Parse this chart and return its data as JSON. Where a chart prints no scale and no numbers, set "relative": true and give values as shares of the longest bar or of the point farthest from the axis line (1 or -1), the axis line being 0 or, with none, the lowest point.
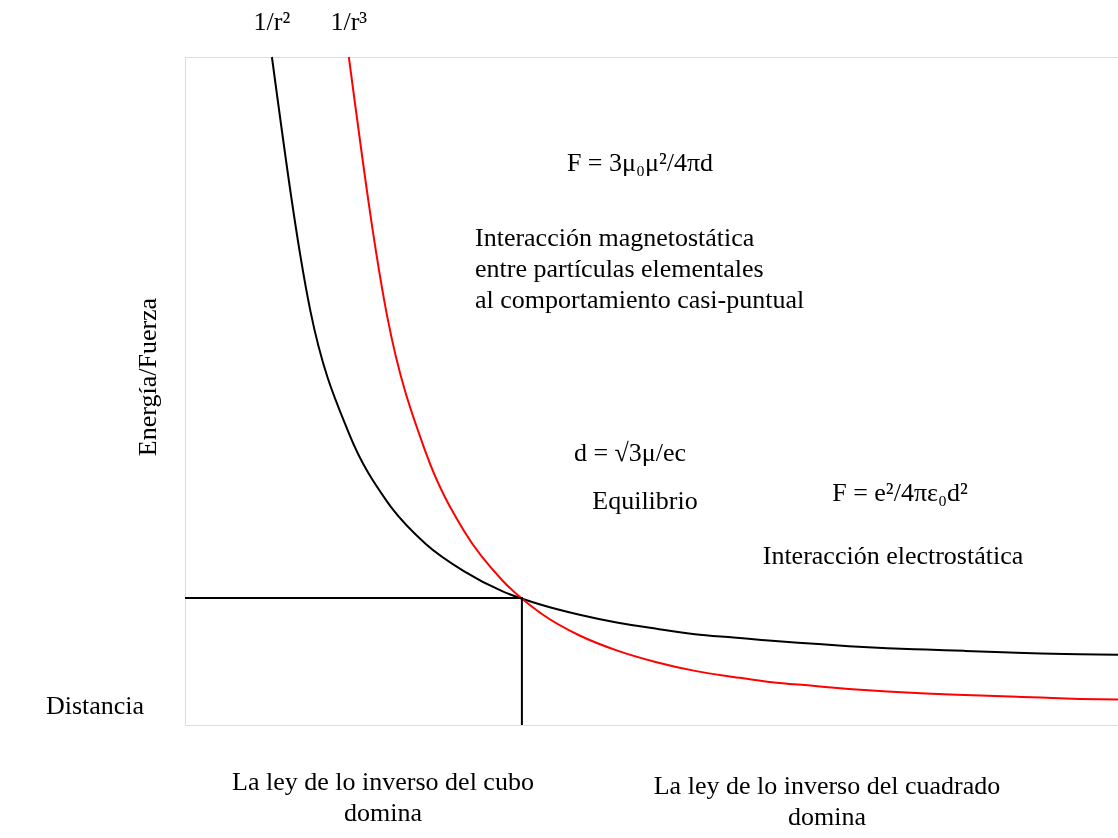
{
  "chart_data": {
    "type": "line",
    "relative": true,
    "tick_labels": false,
    "grid": false,
    "marker": "none",
    "line_style": "solid",
    "xlabel": "Distancia",
    "ylabel": "Energía/Fuerza",
    "categories": [
      null,
      null,
      null,
      null,
      null,
      null,
      null,
      null,
      null,
      null,
      null,
      null,
      null,
      null,
      null,
      null,
      null,
      null,
      null,
      null,
      null,
      null,
      null
    ],
    "series": [
      {
        "name": "1/r²",
        "color": "#000000",
        "values": [
          1.0,
          0.62,
          0.437,
          0.334,
          0.271,
          0.23,
          0.2,
          0.18,
          0.165,
          0.153,
          0.144,
          0.136,
          0.131,
          0.126,
          0.122,
          0.118,
          0.115,
          0.113,
          0.111,
          0.109,
          0.107,
          0.106,
          0.105
        ]
      },
      {
        "name": "1/r³",
        "color": "#ff0000",
        "values": [
          null,
          null,
          1.0,
          0.611,
          0.408,
          0.29,
          0.216,
          0.167,
          0.134,
          0.111,
          0.094,
          0.081,
          0.072,
          0.064,
          0.059,
          0.054,
          0.05,
          0.047,
          0.045,
          0.043,
          0.041,
          0.039,
          0.038
        ]
      }
    ],
    "ref_lines": [
      {
        "axis": "y",
        "value": 0.19,
        "color": "#000000"
      }
    ],
    "annotations": [
      "F = 3μ₀μ²/4πd",
      "Interacción magnetostática\n   entre partículas elementales\n   al comportamiento casi-puntual",
      "d = √3μ/ec",
      "Equilibrio",
      "F = e²/4πε₀d²",
      "Interacción electrostática",
      "La ley de lo inverso del cubo\ndomina",
      "La ley de lo inverso del cuadrado\ndomina"
    ]
  }
}
